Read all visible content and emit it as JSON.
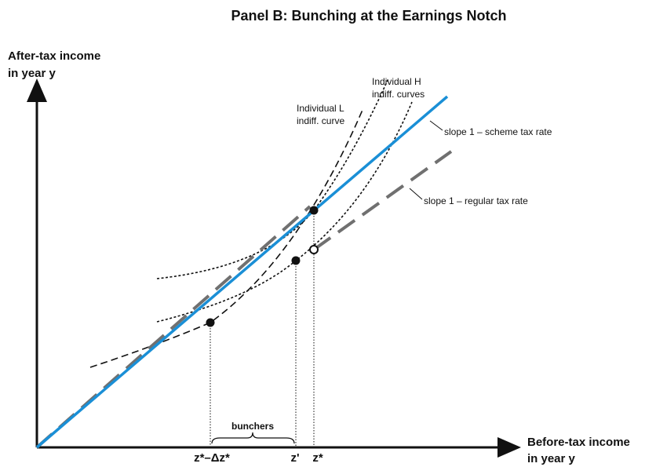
{
  "title": "Panel B: Bunching at the Earnings Notch",
  "y_axis_label": [
    "After-tax income",
    "in year y"
  ],
  "x_axis_label": [
    "Before-tax income",
    "in year y"
  ],
  "x_labels": [
    "z*–Δz*",
    "z'",
    "z*"
  ],
  "bunchers_label": "bunchers",
  "annotations": {
    "individual_l": [
      "Individual L",
      "indiff. curve"
    ],
    "individual_h": [
      "Individual H",
      "indiff. curves"
    ],
    "scheme": "slope 1 – scheme tax rate",
    "regular": "slope 1 – regular tax rate"
  }
}
